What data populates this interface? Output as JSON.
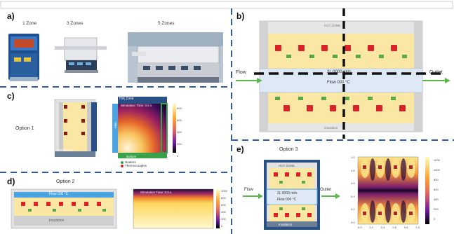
{
  "panels": {
    "a": {
      "letter": "a)",
      "furnaces": [
        {
          "label": "1 Zone"
        },
        {
          "label": "3 Zones"
        },
        {
          "label": "5 Zones"
        }
      ]
    },
    "b": {
      "letter": "b)",
      "inlet_label": "Flow",
      "outlet_label": "Outlet",
      "tube_text": "2L 0000 ml/s",
      "tube_text2": "Flow 000 °C",
      "top_block": "HOT ZONE",
      "bottom_block": "Insulation",
      "colors": {
        "block": "#fbe7a4",
        "heater": "#d7242b",
        "thermo": "#5aa84b",
        "tube": "#dfe9f5",
        "frame": "#e3e3e3",
        "arrow": "#5ab84a"
      }
    },
    "c": {
      "letter": "c)",
      "option": "Option 1",
      "insulation": "Insulation",
      "map_title": "Simulation Time: 0.5 s",
      "map_top": "Hot Zone",
      "map_left": "Inlet",
      "map_bottom": "Bottom",
      "legend": [
        "Heaters",
        "Thermocouples"
      ],
      "colorbar": [
        "800",
        "600",
        "400",
        "200",
        "0"
      ]
    },
    "d": {
      "letter": "d)",
      "option": "Option 2",
      "top_label": "Flow 000 °C",
      "bottom_label": "Insulation",
      "map_title": "Simulation Time: 0.5 s",
      "colorbar": [
        "1000",
        "800",
        "600",
        "400",
        "200",
        "0"
      ]
    },
    "e": {
      "letter": "e)",
      "option": "Option 3",
      "flow": "Flow",
      "outlet": "Outlet",
      "top_label": "HOT ZONE",
      "tube_text": "2L 0000 ml/s",
      "tube_text2": "Flow 000 °C",
      "bottom_label": "Insulation",
      "colorbar": [
        "1200",
        "1000",
        "800",
        "600",
        "400",
        "200",
        "0"
      ],
      "x_ticks": [
        "0.0",
        "0.2",
        "0.4",
        "0.6",
        "0.8",
        "1.0"
      ],
      "y_ticks": [
        "0.0",
        "0.2",
        "0.4",
        "0.6",
        "0.8",
        "1.0"
      ]
    }
  }
}
